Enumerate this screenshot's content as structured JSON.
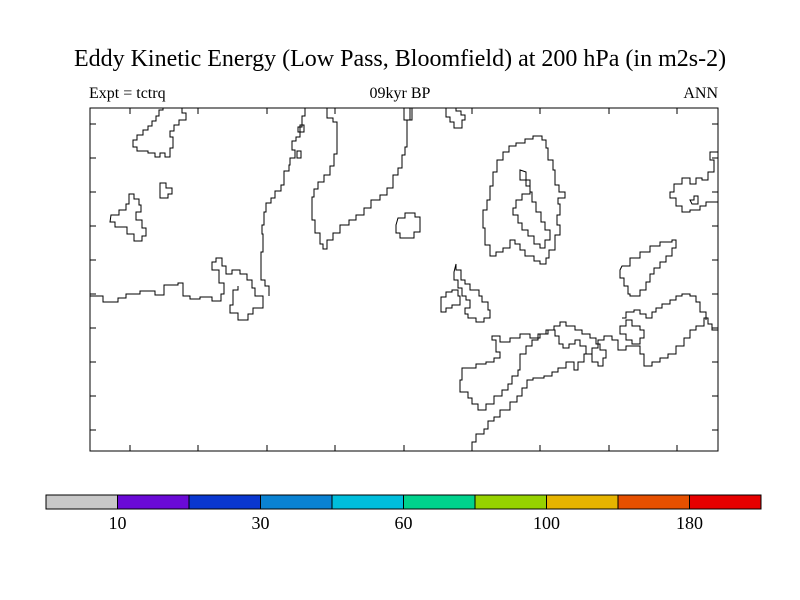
{
  "header": {
    "title": "Eddy Kinetic Energy (Low Pass, Bloomfield) at 200 hPa (in m2s-2)",
    "experiment": "Expt = tctrq",
    "period": "09kyr BP",
    "season": "ANN"
  },
  "colorbar": {
    "colors": [
      "#c8c8c8",
      "#6a0ad6",
      "#0a37d0",
      "#0a82d2",
      "#00bedc",
      "#00d28c",
      "#96d200",
      "#e6b400",
      "#e65000",
      "#e60000"
    ],
    "labels": [
      {
        "text": "10",
        "boundary": 1
      },
      {
        "text": "30",
        "boundary": 3
      },
      {
        "text": "60",
        "boundary": 5
      },
      {
        "text": "100",
        "boundary": 7
      },
      {
        "text": "180",
        "boundary": 9
      }
    ]
  }
}
